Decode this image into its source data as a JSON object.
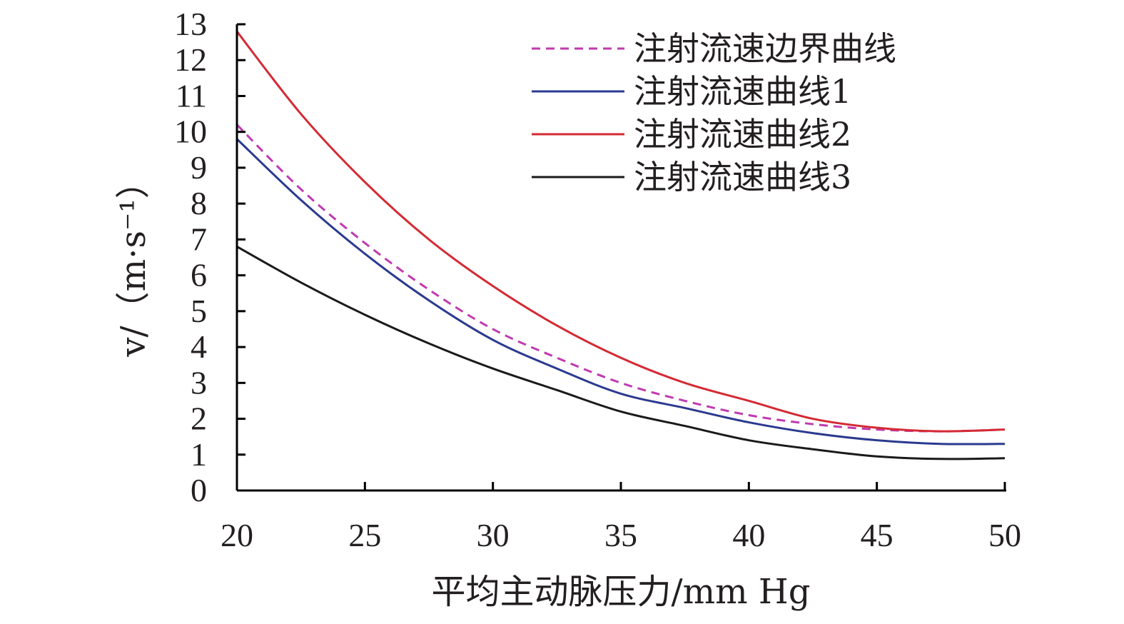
{
  "chart_data": {
    "type": "line",
    "xlabel": "平均主动脉压力/mm Hg",
    "ylabel": "v/（m·s⁻¹）",
    "xlim": [
      20,
      50
    ],
    "ylim": [
      0,
      13
    ],
    "xticks": [
      20,
      25,
      30,
      35,
      40,
      45,
      50
    ],
    "yticks": [
      0,
      1,
      2,
      3,
      4,
      5,
      6,
      7,
      8,
      9,
      10,
      11,
      12,
      13
    ],
    "grid": false,
    "legend_position": "top-right",
    "x": [
      20,
      22.5,
      25,
      27.5,
      30,
      32.5,
      35,
      37.5,
      40,
      42.5,
      45,
      47.5,
      50
    ],
    "series": [
      {
        "name": "注射流速边界曲线",
        "color": "#c03ab0",
        "dash": "dashed",
        "values": [
          10.2,
          8.4,
          6.9,
          5.6,
          4.5,
          3.7,
          3.0,
          2.5,
          2.1,
          1.85,
          1.7,
          1.65,
          1.7
        ]
      },
      {
        "name": "注射流速曲线1",
        "color": "#2b3a8f",
        "dash": "solid",
        "values": [
          9.8,
          8.1,
          6.6,
          5.3,
          4.2,
          3.4,
          2.7,
          2.3,
          1.9,
          1.6,
          1.4,
          1.3,
          1.3
        ]
      },
      {
        "name": "注射流速曲线2",
        "color": "#d42a34",
        "dash": "solid",
        "values": [
          12.8,
          10.5,
          8.6,
          7.0,
          5.7,
          4.6,
          3.7,
          3.0,
          2.5,
          2.0,
          1.75,
          1.65,
          1.7
        ]
      },
      {
        "name": "注射流速曲线3",
        "color": "#1a1a1a",
        "dash": "solid",
        "values": [
          6.8,
          5.8,
          4.9,
          4.1,
          3.4,
          2.8,
          2.2,
          1.8,
          1.4,
          1.15,
          0.95,
          0.88,
          0.9
        ]
      }
    ]
  }
}
